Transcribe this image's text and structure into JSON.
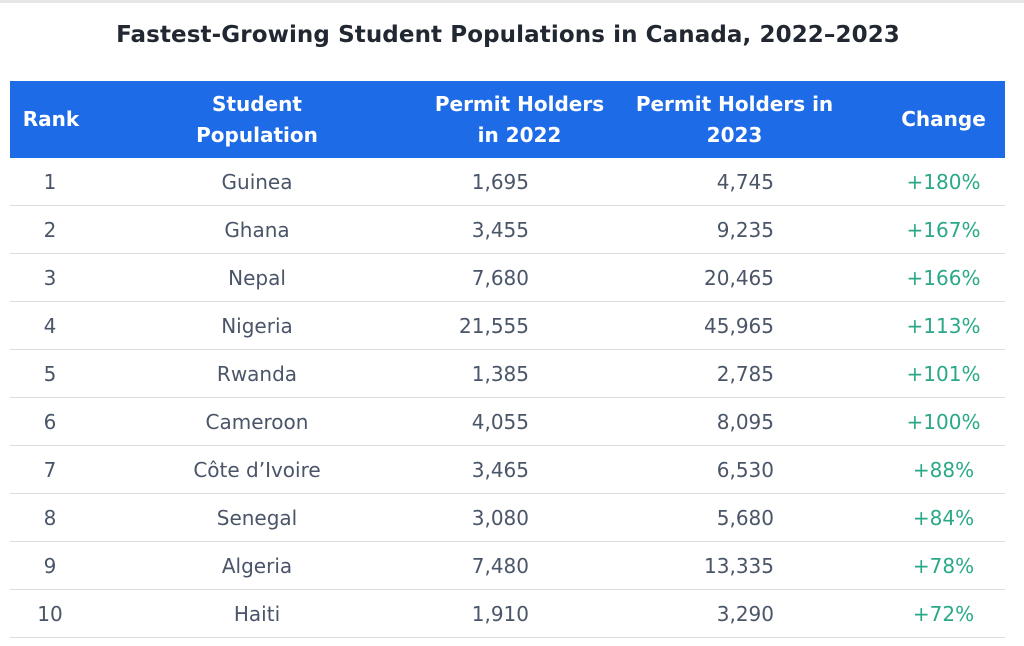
{
  "title": "Fastest-Growing Student Populations in Canada, 2022–2023",
  "table": {
    "headers": {
      "rank": "Rank",
      "population": "Student Population",
      "y2022": "Permit Holders in 2022",
      "y2023": "Permit Holders in 2023",
      "change": "Change"
    },
    "rows": [
      {
        "rank": "1",
        "population": "Guinea",
        "y2022": "1,695",
        "y2023": "4,745",
        "change": "+180%"
      },
      {
        "rank": "2",
        "population": "Ghana",
        "y2022": "3,455",
        "y2023": "9,235",
        "change": "+167%"
      },
      {
        "rank": "3",
        "population": "Nepal",
        "y2022": "7,680",
        "y2023": "20,465",
        "change": "+166%"
      },
      {
        "rank": "4",
        "population": "Nigeria",
        "y2022": "21,555",
        "y2023": "45,965",
        "change": "+113%"
      },
      {
        "rank": "5",
        "population": "Rwanda",
        "y2022": "1,385",
        "y2023": "2,785",
        "change": "+101%"
      },
      {
        "rank": "6",
        "population": "Cameroon",
        "y2022": "4,055",
        "y2023": "8,095",
        "change": "+100%"
      },
      {
        "rank": "7",
        "population": "Côte d’Ivoire",
        "y2022": "3,465",
        "y2023": "6,530",
        "change": "+88%"
      },
      {
        "rank": "8",
        "population": "Senegal",
        "y2022": "3,080",
        "y2023": "5,680",
        "change": "+84%"
      },
      {
        "rank": "9",
        "population": "Algeria",
        "y2022": "7,480",
        "y2023": "13,335",
        "change": "+78%"
      },
      {
        "rank": "10",
        "population": "Haiti",
        "y2022": "1,910",
        "y2023": "3,290",
        "change": "+72%"
      }
    ]
  },
  "colors": {
    "header_bg": "#1e6be8",
    "header_text": "#ffffff",
    "body_text": "#4a5568",
    "change_text": "#2aa888",
    "divider": "#dcdcdc"
  }
}
